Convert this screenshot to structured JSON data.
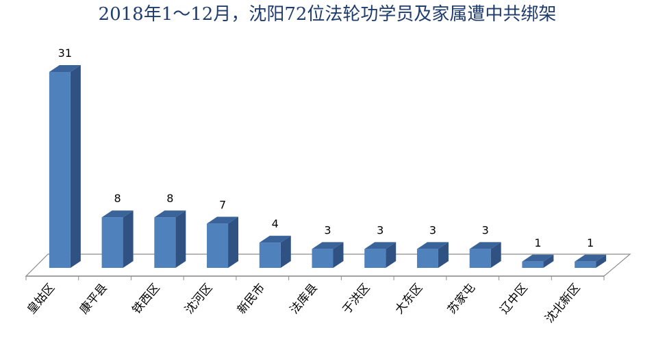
{
  "chart_data": {
    "type": "bar3d",
    "title": "2018年1～12月，沈阳72位法轮功学员及家属遭中共绑架",
    "categories": [
      "皇姑区",
      "康平县",
      "铁西区",
      "沈河区",
      "新民市",
      "法库县",
      "于洪区",
      "大东区",
      "苏家屯",
      "辽中区",
      "沈北新区"
    ],
    "values": [
      31,
      8,
      8,
      7,
      4,
      3,
      3,
      3,
      3,
      1,
      1
    ],
    "color": "#4f81bd"
  }
}
